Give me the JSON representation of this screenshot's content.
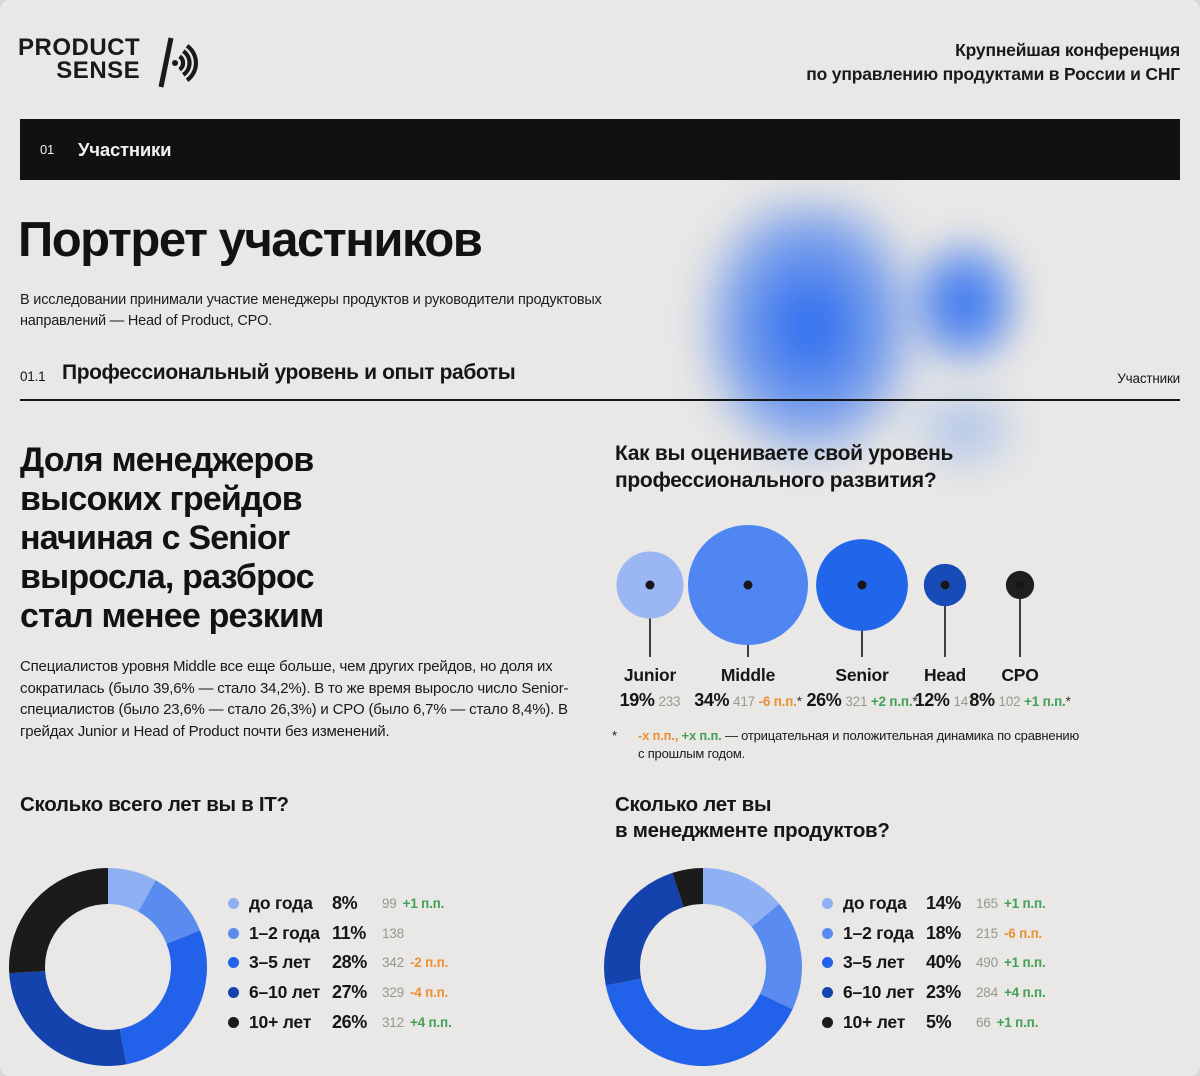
{
  "brand": {
    "logo_top": "PRODUCT",
    "logo_bottom": "SENSE",
    "tagline_line1": "Крупнейшая конференция",
    "tagline_line2": "по управлению продуктами в России и СНГ"
  },
  "section_bar": {
    "number": "01",
    "title": "Участники"
  },
  "intro": {
    "title": "Портрет участников",
    "subtitle": "В исследовании принимали участие менеджеры продуктов и руководители продуктовых направлений — Head of Product, CPO."
  },
  "subsection": {
    "number": "01.1",
    "title": "Профессиональный уровень и опыт работы",
    "right_label": "Участники"
  },
  "grades": {
    "heading_lines": [
      "Доля менеджеров",
      "высоких грейдов",
      "начиная с Senior",
      "выросла, разброс",
      "стал менее резким"
    ],
    "paragraph": "Специалистов уровня Middle все еще больше, чем других грейдов, но доля их сократилась (было 39,6% — стало 34,2%). В то же время выросло число Senior-специалистов (было 23,6% — стало 26,3%) и CPO (было 6,7% — стало 8,4%). В грейдах Junior и Head of Product почти без изменений.",
    "question_line1": "Как вы оцениваете свой уровень",
    "question_line2": "профессионального развития?",
    "items": [
      {
        "name": "Junior",
        "pct": "19%",
        "count": "233",
        "dyn": "",
        "star": ""
      },
      {
        "name": "Middle",
        "pct": "34%",
        "count": "417",
        "dyn": "-6 п.п.",
        "star": "*"
      },
      {
        "name": "Senior",
        "pct": "26%",
        "count": "321",
        "dyn": "+2 п.п.",
        "star": "*"
      },
      {
        "name": "Head",
        "pct": "12%",
        "count": "147",
        "dyn": "",
        "star": ""
      },
      {
        "name": "CPO",
        "pct": "8%",
        "count": "102",
        "dyn": "+1 п.п.",
        "star": "*"
      }
    ]
  },
  "footnote": {
    "star": "*",
    "neg": "-х п.п.,",
    "pos": "+х п.п.",
    "rest": "— отрицательная и положительная динамика по сравнению",
    "line2": "с прошлым годом."
  },
  "donut_it": {
    "title": "Сколько всего лет вы в IT?",
    "legend": [
      {
        "label": "до года",
        "pct": "8%",
        "count": "99",
        "dyn": "+1 п.п."
      },
      {
        "label": "1–2 года",
        "pct": "11%",
        "count": "138",
        "dyn": ""
      },
      {
        "label": "3–5 лет",
        "pct": "28%",
        "count": "342",
        "dyn": "-2 п.п."
      },
      {
        "label": "6–10 лет",
        "pct": "27%",
        "count": "329",
        "dyn": "-4 п.п."
      },
      {
        "label": "10+ лет",
        "pct": "26%",
        "count": "312",
        "dyn": "+4 п.п."
      }
    ]
  },
  "donut_pm": {
    "title_line1": "Сколько лет вы",
    "title_line2": "в менеджменте продуктов?",
    "legend": [
      {
        "label": "до года",
        "pct": "14%",
        "count": "165",
        "dyn": "+1 п.п."
      },
      {
        "label": "1–2 года",
        "pct": "18%",
        "count": "215",
        "dyn": "-6 п.п."
      },
      {
        "label": "3–5 лет",
        "pct": "40%",
        "count": "490",
        "dyn": "+1 п.п."
      },
      {
        "label": "6–10 лет",
        "pct": "23%",
        "count": "284",
        "dyn": "+4 п.п."
      },
      {
        "label": "10+ лет",
        "pct": "5%",
        "count": "66",
        "dyn": "+1 п.п."
      }
    ]
  },
  "palette": {
    "positive": "#43A155",
    "negative": "#EC8F33",
    "count_gray": "#98978F",
    "bubble_colors": [
      "#9AB7F4",
      "#4F86F1",
      "#2166EA",
      "#174BB8",
      "#1F1F1F"
    ],
    "age_colors": [
      "#8FB1F4",
      "#5A8CF0",
      "#2262EA",
      "#1543AE",
      "#1B1B1B"
    ],
    "accent_blue": "#2367F0",
    "bar_black": "#111111",
    "page_bg": "#E9E8E6"
  },
  "chart_data": [
    {
      "type": "scatter",
      "subtype": "bubble",
      "title": "Как вы оцениваете свой уровень профессионального развития?",
      "categories": [
        "Junior",
        "Middle",
        "Senior",
        "Head",
        "CPO"
      ],
      "values_pct": [
        19,
        34,
        26,
        12,
        8
      ],
      "counts": [
        233,
        417,
        321,
        147,
        102
      ],
      "change_pp": [
        null,
        -6,
        2,
        null,
        1
      ]
    },
    {
      "type": "pie",
      "subtype": "donut",
      "title": "Сколько всего лет вы в IT?",
      "categories": [
        "до года",
        "1–2 года",
        "3–5 лет",
        "6–10 лет",
        "10+ лет"
      ],
      "values_pct": [
        8,
        11,
        28,
        27,
        26
      ],
      "counts": [
        99,
        138,
        342,
        329,
        312
      ],
      "change_pp": [
        1,
        null,
        -2,
        -4,
        4
      ]
    },
    {
      "type": "pie",
      "subtype": "donut",
      "title": "Сколько лет вы в менеджменте продуктов?",
      "categories": [
        "до года",
        "1–2 года",
        "3–5 лет",
        "6–10 лет",
        "10+ лет"
      ],
      "values_pct": [
        14,
        18,
        40,
        23,
        5
      ],
      "counts": [
        165,
        215,
        490,
        284,
        66
      ],
      "change_pp": [
        1,
        -6,
        1,
        4,
        1
      ]
    }
  ]
}
